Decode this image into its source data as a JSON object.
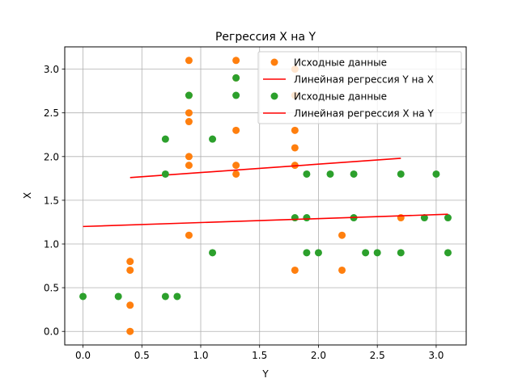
{
  "chart_data": {
    "type": "scatter",
    "title": "Регрессия X на Y",
    "xlabel": "Y",
    "ylabel": "X",
    "xlim": [
      -0.155,
      3.255
    ],
    "ylim": [
      -0.155,
      3.255
    ],
    "grid": true,
    "legend_position": "top-right",
    "xticks": [
      0.0,
      0.5,
      1.0,
      1.5,
      2.0,
      2.5,
      3.0
    ],
    "xtick_labels": [
      "0.0",
      "0.5",
      "1.0",
      "1.5",
      "2.0",
      "2.5",
      "3.0"
    ],
    "yticks": [
      0.0,
      0.5,
      1.0,
      1.5,
      2.0,
      2.5,
      3.0
    ],
    "ytick_labels": [
      "0.0",
      "0.5",
      "1.0",
      "1.5",
      "2.0",
      "2.5",
      "3.0"
    ],
    "series": [
      {
        "name": "Исходные данные",
        "kind": "scatter",
        "color": "#ff7f0e",
        "points": [
          [
            0.4,
            0.0
          ],
          [
            0.4,
            0.3
          ],
          [
            0.4,
            0.7
          ],
          [
            0.4,
            0.8
          ],
          [
            0.9,
            1.1
          ],
          [
            0.9,
            1.9
          ],
          [
            0.9,
            2.0
          ],
          [
            0.9,
            2.4
          ],
          [
            0.9,
            2.5
          ],
          [
            0.9,
            2.7
          ],
          [
            0.9,
            3.1
          ],
          [
            1.3,
            1.8
          ],
          [
            1.3,
            1.9
          ],
          [
            1.3,
            2.3
          ],
          [
            1.3,
            2.9
          ],
          [
            1.3,
            3.1
          ],
          [
            1.8,
            0.7
          ],
          [
            1.8,
            1.9
          ],
          [
            1.8,
            2.1
          ],
          [
            1.8,
            2.3
          ],
          [
            1.8,
            2.7
          ],
          [
            1.8,
            3.0
          ],
          [
            2.2,
            0.7
          ],
          [
            2.2,
            1.1
          ],
          [
            2.7,
            1.3
          ]
        ]
      },
      {
        "name": "Линейная регрессия Y на X",
        "kind": "line",
        "color": "#ff0000",
        "points": [
          [
            0.4,
            1.76
          ],
          [
            2.7,
            1.98
          ]
        ]
      },
      {
        "name": "Исходные данные",
        "kind": "scatter",
        "color": "#2ca02c",
        "points": [
          [
            0.0,
            0.4
          ],
          [
            0.3,
            0.4
          ],
          [
            0.7,
            0.4
          ],
          [
            0.8,
            0.4
          ],
          [
            0.7,
            1.8
          ],
          [
            0.7,
            2.2
          ],
          [
            0.9,
            2.7
          ],
          [
            1.1,
            0.9
          ],
          [
            1.1,
            2.2
          ],
          [
            1.3,
            2.7
          ],
          [
            1.3,
            2.9
          ],
          [
            1.8,
            1.3
          ],
          [
            1.9,
            0.9
          ],
          [
            1.9,
            1.3
          ],
          [
            1.9,
            1.8
          ],
          [
            2.0,
            0.9
          ],
          [
            2.1,
            1.8
          ],
          [
            2.3,
            1.3
          ],
          [
            2.3,
            1.8
          ],
          [
            2.4,
            0.9
          ],
          [
            2.5,
            0.9
          ],
          [
            2.7,
            0.9
          ],
          [
            2.7,
            1.8
          ],
          [
            2.9,
            1.3
          ],
          [
            3.0,
            1.8
          ],
          [
            3.1,
            0.9
          ],
          [
            3.1,
            1.3
          ]
        ]
      },
      {
        "name": "Линейная регрессия X на Y",
        "kind": "line",
        "color": "#ff0000",
        "points": [
          [
            0.0,
            1.2
          ],
          [
            3.1,
            1.34
          ]
        ]
      }
    ]
  }
}
